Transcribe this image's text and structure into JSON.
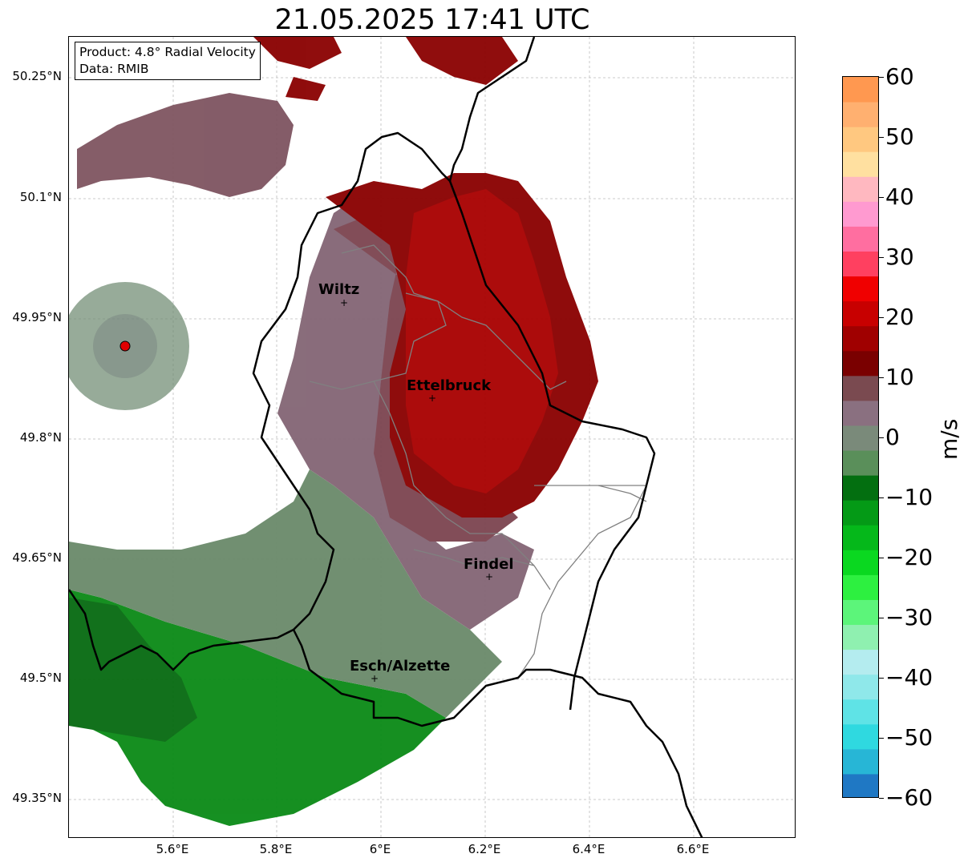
{
  "title": "21.05.2025 17:41 UTC",
  "info": {
    "product": "Product: 4.8° Radial Velocity",
    "source": "Data: RMIB"
  },
  "map": {
    "extent_lon": [
      5.4,
      6.8
    ],
    "extent_lat": [
      49.3,
      50.3
    ],
    "lat_ticks": [
      "50.25°N",
      "50.1°N",
      "49.95°N",
      "49.8°N",
      "49.65°N",
      "49.5°N",
      "49.35°N"
    ],
    "lon_ticks": [
      "5.6°E",
      "5.8°E",
      "6°E",
      "6.2°E",
      "6.4°E",
      "6.6°E"
    ],
    "radar_site": {
      "lon": 5.505,
      "lat": 49.915,
      "color": "#e00000"
    },
    "cities": [
      {
        "name": "Wiltz",
        "lon": 5.935,
        "lat": 49.967
      },
      {
        "name": "Ettelbruck",
        "lon": 6.104,
        "lat": 49.847
      },
      {
        "name": "Findel",
        "lon": 6.211,
        "lat": 49.628
      },
      {
        "name": "Esch/Alzette",
        "lon": 5.988,
        "lat": 49.5
      }
    ]
  },
  "colorbar": {
    "label": "m/s",
    "ticks": [
      "60",
      "50",
      "40",
      "30",
      "20",
      "10",
      "0",
      "−10",
      "−20",
      "−30",
      "−40",
      "−50",
      "−60"
    ],
    "range": [
      -60,
      60
    ],
    "colors_bottom_to_top": [
      "#1f78c4",
      "#27b6d6",
      "#2fd9e0",
      "#5fe3e6",
      "#8fe8ea",
      "#b4ecef",
      "#8ff0b0",
      "#5cf57a",
      "#2df040",
      "#0ad820",
      "#05b81a",
      "#049a16",
      "#036f10",
      "#5a8f5a",
      "#7a8a7a",
      "#8a7080",
      "#7a4a50",
      "#7a0000",
      "#a00000",
      "#c80000",
      "#f00000",
      "#ff4060",
      "#ff6ea0",
      "#ff9ad0",
      "#ffb8c0",
      "#ffe0a0",
      "#ffc880",
      "#ffb070",
      "#ff9850"
    ]
  }
}
